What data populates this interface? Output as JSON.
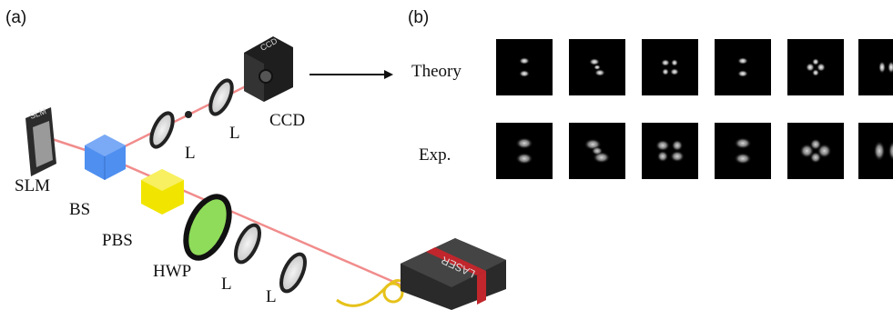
{
  "panel_a": {
    "label": "(a)",
    "ccd_device": "CCD",
    "ccd": "CCD",
    "slm_device": "SLM",
    "slm": "SLM",
    "bs": "BS",
    "pbs": "PBS",
    "hwp": "HWP",
    "lenses": [
      "L",
      "L",
      "L",
      "L"
    ],
    "laser": "LASER"
  },
  "panel_b": {
    "label": "(b)",
    "rows": [
      {
        "label": "Theory"
      },
      {
        "label": "Exp."
      }
    ]
  }
}
